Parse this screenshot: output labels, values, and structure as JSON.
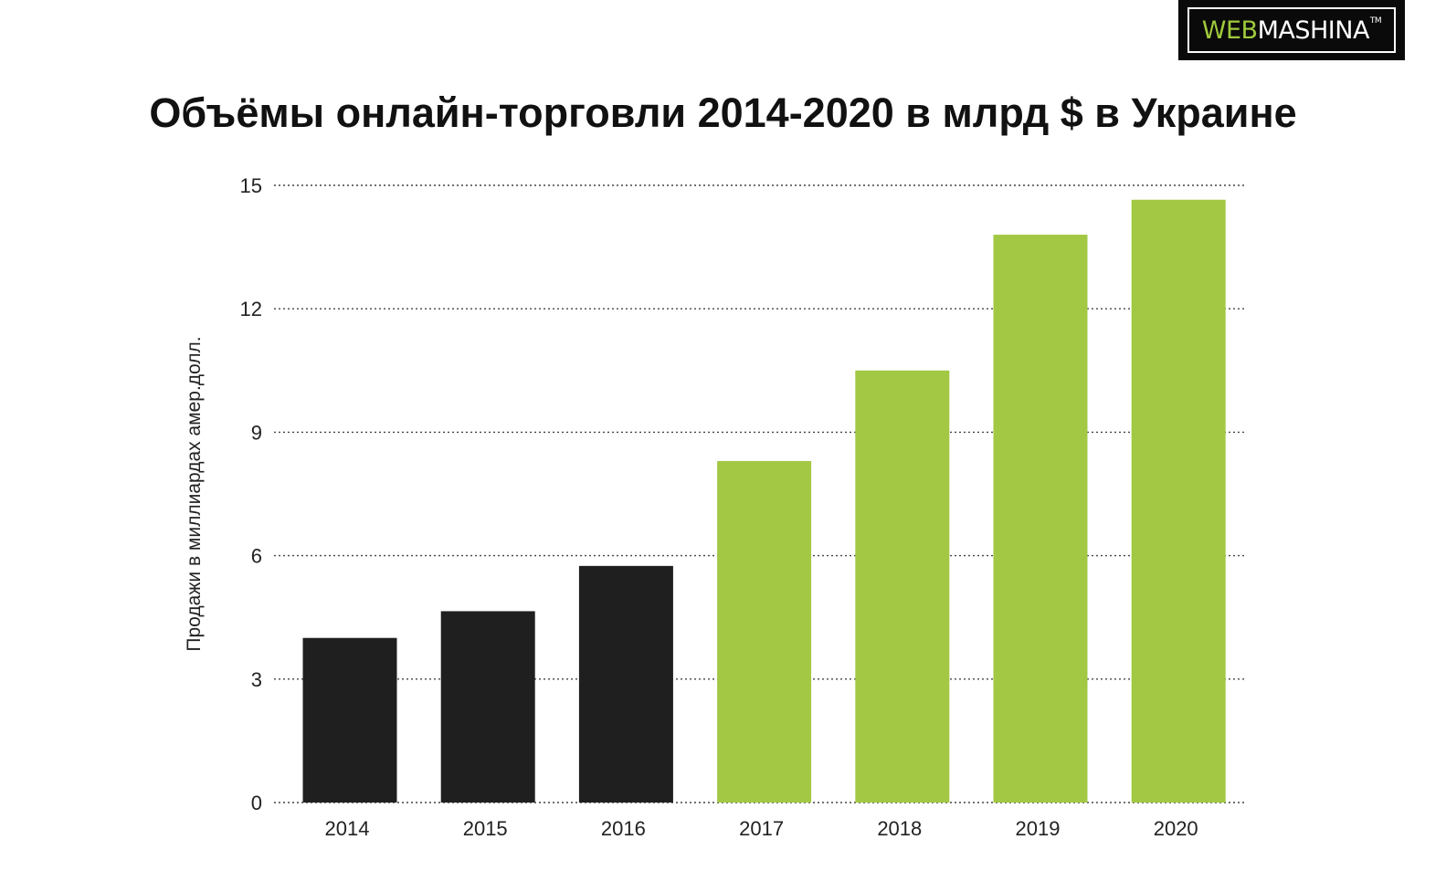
{
  "logo": {
    "text_web": "WEB",
    "text_rest": "MASHINA",
    "text_tm": "TM",
    "colors": {
      "background": "#0a0a0a",
      "web": "#9fc93c",
      "rest": "#ffffff"
    }
  },
  "chart_data": {
    "type": "bar",
    "title": "Объёмы онлайн-торговли 2014-2020 в млрд $ в Украине",
    "xlabel": "",
    "ylabel": "Продажи в миллиардах амер.долл.",
    "categories": [
      "2014",
      "2015",
      "2016",
      "2017",
      "2018",
      "2019",
      "2020"
    ],
    "values": [
      4.0,
      4.65,
      5.75,
      8.3,
      10.5,
      13.8,
      14.65
    ],
    "bar_colors": [
      "#1f1f1f",
      "#1f1f1f",
      "#1f1f1f",
      "#a2c844",
      "#a2c844",
      "#a2c844",
      "#a2c844"
    ],
    "ylim": [
      0,
      15
    ],
    "yticks": [
      0,
      3,
      6,
      9,
      12,
      15
    ],
    "grid": "horizontal dotted",
    "legend": "none"
  }
}
